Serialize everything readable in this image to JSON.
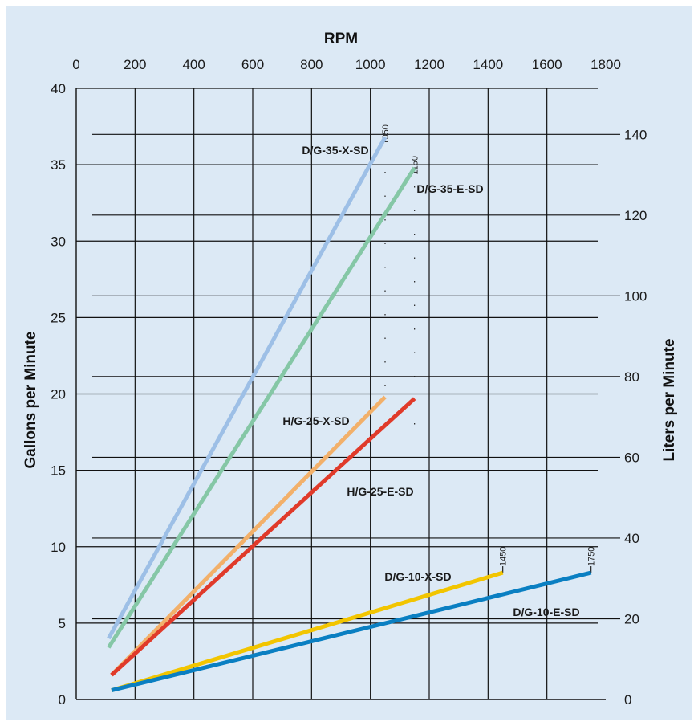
{
  "chart_data": {
    "type": "line",
    "x_top_label": "RPM",
    "y_left_label": "Gallons per Minute",
    "y_right_label": "Liters per Minute",
    "x_range": [
      0,
      1800
    ],
    "y_left_range": [
      0,
      40
    ],
    "y_right_range": [
      0,
      151.4
    ],
    "x_ticks": [
      "0",
      "200",
      "400",
      "600",
      "800",
      "1000",
      "1200",
      "1400",
      "1600",
      "1800"
    ],
    "y_left_ticks": [
      "0",
      "5",
      "10",
      "15",
      "20",
      "25",
      "30",
      "35",
      "40"
    ],
    "y_right_ticks": [
      "0",
      "20",
      "40",
      "60",
      "80",
      "100",
      "120",
      "140"
    ],
    "grid": true,
    "background_color": "#dce9f5",
    "series": [
      {
        "name": "D/G-35-X-SD",
        "color": "#9dbfe6",
        "points": [
          [
            110,
            4.0
          ],
          [
            1050,
            36.8
          ]
        ]
      },
      {
        "name": "D/G-35-E-SD",
        "color": "#85c7a6",
        "points": [
          [
            110,
            3.4
          ],
          [
            1150,
            34.8
          ]
        ]
      },
      {
        "name": "H/G-25-X-SD",
        "color": "#f2b06a",
        "points": [
          [
            120,
            1.6
          ],
          [
            1050,
            19.8
          ]
        ]
      },
      {
        "name": "H/G-25-E-SD",
        "color": "#e03a2a",
        "points": [
          [
            120,
            1.6
          ],
          [
            1150,
            19.7
          ]
        ]
      },
      {
        "name": "D/G-10-X-SD",
        "color": "#f2c500",
        "points": [
          [
            120,
            0.6
          ],
          [
            1450,
            8.3
          ]
        ]
      },
      {
        "name": "D/G-10-E-SD",
        "color": "#0a7fc2",
        "points": [
          [
            120,
            0.6
          ],
          [
            1750,
            8.3
          ]
        ]
      }
    ],
    "max_rpm_markers": [
      {
        "label": "1050",
        "x": 1050,
        "y_bottom": 20.5,
        "y_top": 37.5
      },
      {
        "label": "1150",
        "x": 1150,
        "y_bottom": 18.0,
        "y_top": 35.5
      },
      {
        "label": "1450",
        "x": 1450,
        "y_bottom": 8.3,
        "y_top": 10.3
      },
      {
        "label": "1750",
        "x": 1750,
        "y_bottom": 8.3,
        "y_top": 10.3
      }
    ]
  }
}
